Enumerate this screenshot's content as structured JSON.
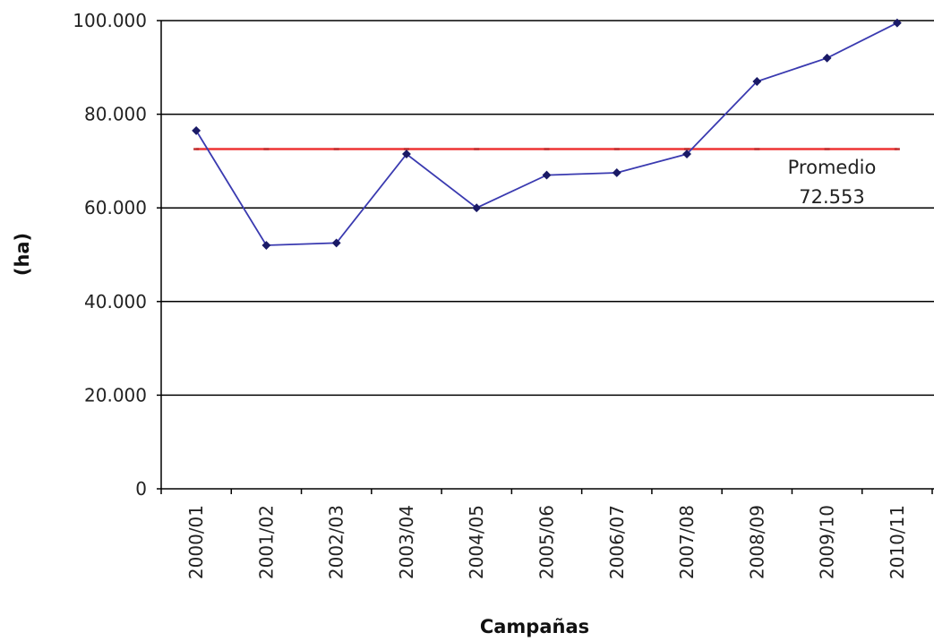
{
  "chart_data": {
    "type": "line",
    "title": "",
    "xlabel": "Campañas",
    "ylabel": "(ha)",
    "ylim": [
      0,
      100000
    ],
    "y_ticks": [
      0,
      20000,
      40000,
      60000,
      80000,
      100000
    ],
    "y_tick_labels": [
      "0",
      "20.000",
      "40.000",
      "60.000",
      "80.000",
      "100.000"
    ],
    "grid": "horizontal",
    "categories": [
      "2000/01",
      "2001/02",
      "2002/03",
      "2003/04",
      "2004/05",
      "2005/06",
      "2006/07",
      "2007/08",
      "2008/09",
      "2009/10",
      "2010/11"
    ],
    "series": [
      {
        "name": "",
        "color": "#3a3ab0",
        "values": [
          76500,
          52000,
          52500,
          71500,
          60000,
          67000,
          67500,
          71500,
          87000,
          92000,
          99500
        ]
      },
      {
        "name": "Promedio",
        "color": "#ee3333",
        "values": [
          72553,
          72553,
          72553,
          72553,
          72553,
          72553,
          72553,
          72553,
          72553,
          72553,
          72553
        ]
      }
    ],
    "annotation": {
      "line1": "Promedio",
      "line2": "72.553"
    }
  }
}
